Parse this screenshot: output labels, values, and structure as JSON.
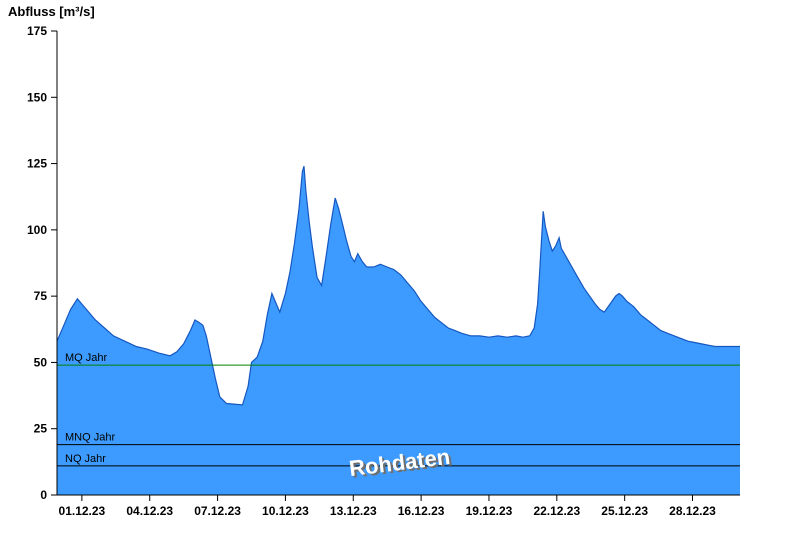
{
  "title": "Abfluss [m³/s]",
  "colors": {
    "area_fill": "#3d9bff",
    "area_stroke": "#1557c0",
    "mq_line": "#008000",
    "mnq_line": "#000000",
    "nq_line": "#000000",
    "axis": "#000000",
    "watermark_fill": "#ffffff",
    "watermark_shadow": "#6e6e6e"
  },
  "chart_data": {
    "type": "area",
    "title": "Abfluss [m³/s]",
    "series_name": "Abfluss Rohdaten",
    "ylabel": "Abfluss [m³/s]",
    "ylim": [
      0,
      175
    ],
    "y_ticks": [
      0,
      25,
      50,
      75,
      100,
      125,
      150,
      175
    ],
    "xlim": [
      0,
      30.2
    ],
    "x_ticks": [
      {
        "day": 1.1,
        "label": "01.12.23"
      },
      {
        "day": 4.1,
        "label": "04.12.23"
      },
      {
        "day": 7.1,
        "label": "07.12.23"
      },
      {
        "day": 10.1,
        "label": "10.12.23"
      },
      {
        "day": 13.1,
        "label": "13.12.23"
      },
      {
        "day": 16.1,
        "label": "16.12.23"
      },
      {
        "day": 19.1,
        "label": "19.12.23"
      },
      {
        "day": 22.1,
        "label": "22.12.23"
      },
      {
        "day": 25.1,
        "label": "25.12.23"
      },
      {
        "day": 28.1,
        "label": "28.12.23"
      }
    ],
    "grid": false,
    "legend": "none",
    "watermark": "Rohdaten",
    "reference_lines": [
      {
        "label": "MQ Jahr",
        "value": 49,
        "color": "#008000"
      },
      {
        "label": "MNQ Jahr",
        "value": 19,
        "color": "#000000"
      },
      {
        "label": "NQ Jahr",
        "value": 11,
        "color": "#000000"
      }
    ],
    "points": [
      [
        0,
        58
      ],
      [
        0.3,
        64
      ],
      [
        0.6,
        70
      ],
      [
        0.9,
        74
      ],
      [
        1.1,
        72
      ],
      [
        1.4,
        69
      ],
      [
        1.7,
        66
      ],
      [
        2.1,
        63
      ],
      [
        2.5,
        60
      ],
      [
        3,
        58
      ],
      [
        3.5,
        56
      ],
      [
        4,
        55
      ],
      [
        4.5,
        53.5
      ],
      [
        5,
        52.5
      ],
      [
        5.3,
        54
      ],
      [
        5.6,
        57
      ],
      [
        5.9,
        62
      ],
      [
        6.1,
        66
      ],
      [
        6.3,
        65
      ],
      [
        6.45,
        64
      ],
      [
        6.6,
        60
      ],
      [
        6.8,
        52
      ],
      [
        7,
        44
      ],
      [
        7.2,
        37
      ],
      [
        7.5,
        34.5
      ],
      [
        8.2,
        34
      ],
      [
        8.45,
        41
      ],
      [
        8.6,
        50
      ],
      [
        8.85,
        52
      ],
      [
        9.1,
        58
      ],
      [
        9.3,
        68
      ],
      [
        9.5,
        76
      ],
      [
        9.65,
        73
      ],
      [
        9.85,
        69
      ],
      [
        10.1,
        76
      ],
      [
        10.3,
        84
      ],
      [
        10.5,
        95
      ],
      [
        10.7,
        108
      ],
      [
        10.85,
        122
      ],
      [
        10.92,
        124
      ],
      [
        11,
        115
      ],
      [
        11.15,
        103
      ],
      [
        11.3,
        93
      ],
      [
        11.5,
        82
      ],
      [
        11.7,
        79
      ],
      [
        11.9,
        90
      ],
      [
        12.1,
        102
      ],
      [
        12.3,
        112
      ],
      [
        12.45,
        108
      ],
      [
        12.6,
        103
      ],
      [
        12.8,
        96
      ],
      [
        13,
        90
      ],
      [
        13.15,
        88
      ],
      [
        13.3,
        91
      ],
      [
        13.5,
        88
      ],
      [
        13.7,
        86
      ],
      [
        14,
        86
      ],
      [
        14.3,
        87
      ],
      [
        14.6,
        86
      ],
      [
        14.9,
        85
      ],
      [
        15.2,
        83
      ],
      [
        15.5,
        80
      ],
      [
        15.8,
        77
      ],
      [
        16.1,
        73
      ],
      [
        16.4,
        70
      ],
      [
        16.7,
        67
      ],
      [
        17,
        65
      ],
      [
        17.3,
        63
      ],
      [
        17.6,
        62
      ],
      [
        17.9,
        61
      ],
      [
        18.3,
        60
      ],
      [
        18.7,
        60
      ],
      [
        19.1,
        59.5
      ],
      [
        19.5,
        60
      ],
      [
        19.9,
        59.5
      ],
      [
        20.3,
        60
      ],
      [
        20.6,
        59.5
      ],
      [
        20.9,
        60
      ],
      [
        21.1,
        63
      ],
      [
        21.25,
        72
      ],
      [
        21.35,
        85
      ],
      [
        21.45,
        100
      ],
      [
        21.5,
        107
      ],
      [
        21.6,
        101
      ],
      [
        21.75,
        96
      ],
      [
        21.9,
        92
      ],
      [
        22.05,
        94
      ],
      [
        22.2,
        97
      ],
      [
        22.3,
        93
      ],
      [
        22.5,
        90
      ],
      [
        22.7,
        87
      ],
      [
        22.9,
        84
      ],
      [
        23.1,
        81
      ],
      [
        23.3,
        78
      ],
      [
        23.55,
        75
      ],
      [
        23.8,
        72
      ],
      [
        24,
        70
      ],
      [
        24.2,
        69
      ],
      [
        24.45,
        72
      ],
      [
        24.7,
        75
      ],
      [
        24.85,
        76
      ],
      [
        25,
        75
      ],
      [
        25.2,
        73
      ],
      [
        25.5,
        71
      ],
      [
        25.8,
        68
      ],
      [
        26.1,
        66
      ],
      [
        26.4,
        64
      ],
      [
        26.7,
        62
      ],
      [
        27,
        61
      ],
      [
        27.3,
        60
      ],
      [
        27.6,
        59
      ],
      [
        27.9,
        58
      ],
      [
        28.2,
        57.5
      ],
      [
        28.5,
        57
      ],
      [
        28.8,
        56.5
      ],
      [
        29.1,
        56
      ],
      [
        29.6,
        56
      ],
      [
        30.2,
        56
      ]
    ]
  }
}
